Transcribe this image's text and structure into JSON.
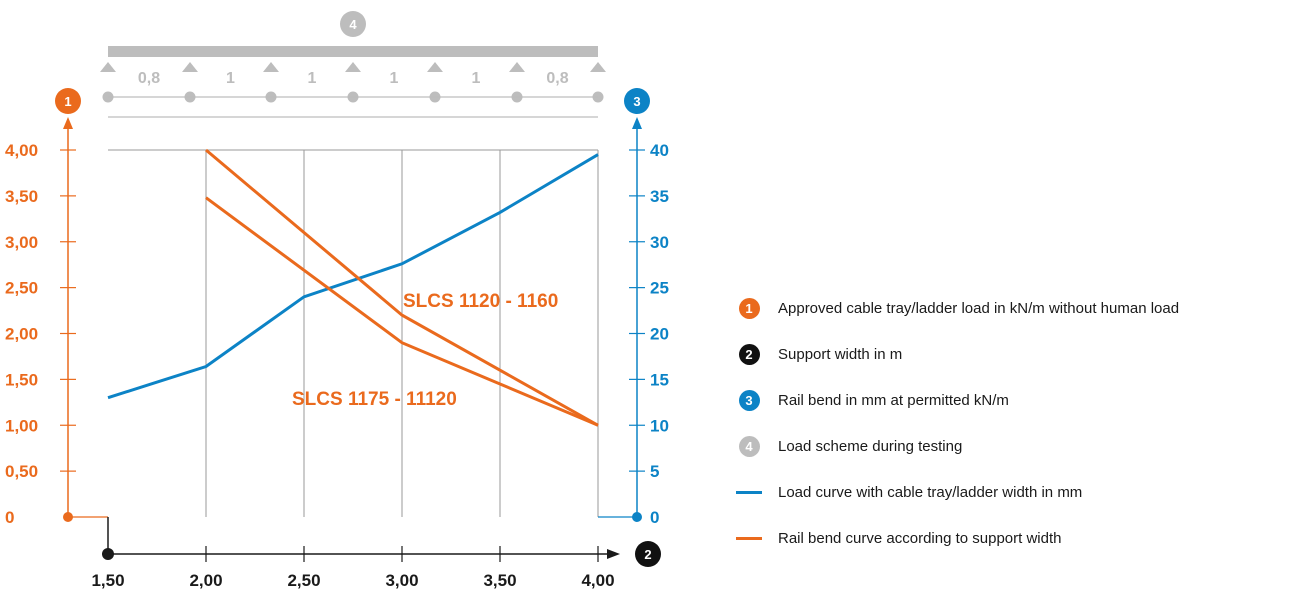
{
  "chart_data": {
    "type": "line",
    "x": [
      1.5,
      2.0,
      2.5,
      3.0,
      3.5,
      4.0
    ],
    "x_tick_labels": [
      "1,50",
      "2,00",
      "2,50",
      "3,00",
      "3,50",
      "4,00"
    ],
    "xlim": [
      1.5,
      4.0
    ],
    "ylim_left": [
      0,
      4.0
    ],
    "y_left_tick_labels": [
      "0",
      "0,50",
      "1,00",
      "1,50",
      "2,00",
      "2,50",
      "3,00",
      "3,50",
      "4,00"
    ],
    "ylim_right": [
      0,
      40
    ],
    "y_right_tick_labels": [
      "0",
      "5",
      "10",
      "15",
      "20",
      "25",
      "30",
      "35",
      "40"
    ],
    "grid": "vertical",
    "axis_badges": {
      "left": "1",
      "x": "2",
      "right": "3",
      "scheme": "4"
    },
    "series": [
      {
        "axis": "right",
        "color": "#0c83c6",
        "x": [
          1.5,
          2.0,
          2.5,
          3.0,
          3.5,
          4.0
        ],
        "values": [
          13.0,
          16.4,
          24.0,
          27.6,
          33.2,
          39.5
        ]
      },
      {
        "name": "SLCS 1120 - 1160",
        "axis": "left",
        "color": "#ea6a1d",
        "x": [
          2.0,
          3.0,
          4.0
        ],
        "values": [
          4.0,
          2.2,
          1.0
        ]
      },
      {
        "name": "SLCS 1175 - 11120",
        "axis": "left",
        "color": "#ea6a1d",
        "x": [
          2.0,
          3.0,
          4.0
        ],
        "values": [
          3.48,
          1.9,
          1.0
        ]
      }
    ],
    "load_scheme": {
      "spans": [
        "0,8",
        "1",
        "1",
        "1",
        "1",
        "0,8"
      ],
      "color": "#bdbdbd"
    }
  },
  "legend": [
    {
      "marker": "badge",
      "badge": "1",
      "color": "#ea6a1d",
      "text": "Approved cable tray/ladder load in kN/m without human load"
    },
    {
      "marker": "badge",
      "badge": "2",
      "color": "#111111",
      "text": "Support width in m"
    },
    {
      "marker": "badge",
      "badge": "3",
      "color": "#0c83c6",
      "text": "Rail bend in mm at permitted kN/m"
    },
    {
      "marker": "badge",
      "badge": "4",
      "color": "#bdbdbd",
      "text": "Load scheme during testing"
    },
    {
      "marker": "line",
      "color": "#0c83c6",
      "text": "Load curve with cable tray/ladder width in mm"
    },
    {
      "marker": "line",
      "color": "#ea6a1d",
      "text": "Rail bend curve according to support width"
    }
  ]
}
